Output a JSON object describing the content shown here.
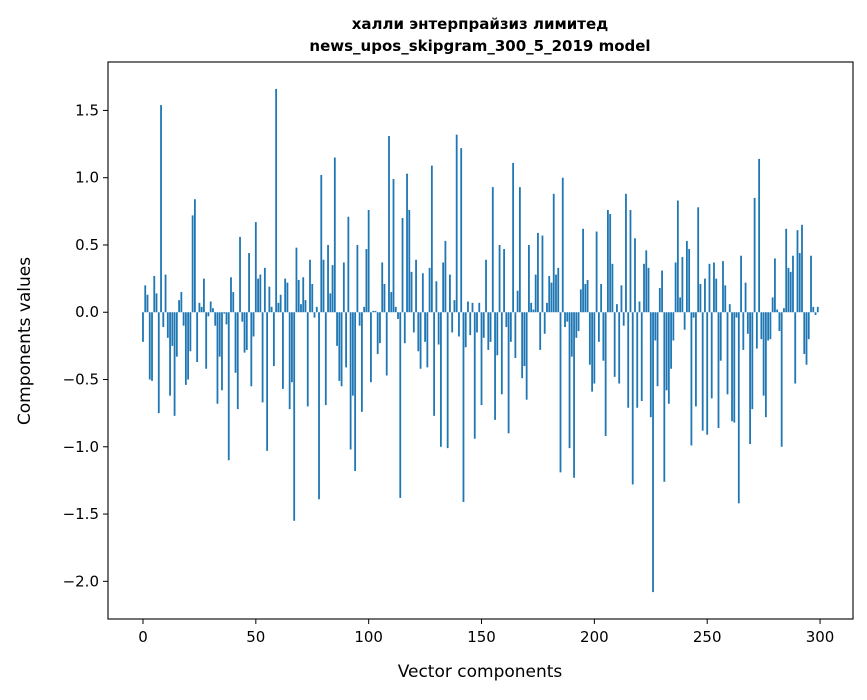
{
  "chart_data": {
    "type": "bar",
    "title": [
      "халли энтерпрайзиз лимитед",
      "news_upos_skipgram_300_5_2019 model"
    ],
    "xlabel": "Vector components",
    "ylabel": "Components values",
    "xlim": [
      -15.5,
      314.6
    ],
    "ylim": [
      -2.28,
      1.86
    ],
    "xticks": [
      0,
      50,
      100,
      150,
      200,
      250,
      300
    ],
    "xtick_labels": [
      "0",
      "50",
      "100",
      "150",
      "200",
      "250",
      "300"
    ],
    "yticks": [
      1.5,
      1.0,
      0.5,
      0.0,
      -0.5,
      -1.0,
      -1.5,
      -2.0
    ],
    "ytick_labels": [
      "1.5",
      "1.0",
      "0.5",
      "0.0",
      "−0.5",
      "−1.0",
      "−1.5",
      "−2.0"
    ],
    "grid": false,
    "bar_color": "#1f77b4",
    "values": [
      -0.22,
      0.2,
      0.13,
      -0.5,
      -0.51,
      0.27,
      0.14,
      -0.75,
      1.54,
      -0.11,
      0.28,
      -0.19,
      -0.62,
      -0.25,
      -0.77,
      -0.33,
      0.09,
      0.15,
      -0.1,
      -0.54,
      -0.5,
      -0.29,
      0.72,
      0.84,
      -0.37,
      0.07,
      0.04,
      0.25,
      -0.42,
      -0.03,
      0.08,
      0.03,
      -0.1,
      -0.68,
      -0.33,
      -0.58,
      -0.01,
      -0.09,
      -1.1,
      0.26,
      0.15,
      -0.45,
      -0.72,
      0.56,
      -0.07,
      -0.3,
      -0.28,
      0.44,
      -0.55,
      -0.18,
      0.67,
      0.25,
      0.28,
      -0.67,
      0.33,
      -1.03,
      0.19,
      0.04,
      -0.4,
      1.66,
      0.07,
      0.13,
      -0.57,
      0.25,
      0.22,
      -0.72,
      -0.52,
      -1.55,
      0.48,
      0.24,
      0.06,
      0.26,
      0.09,
      -0.7,
      0.39,
      0.21,
      -0.04,
      0.04,
      -1.39,
      1.02,
      0.39,
      -0.69,
      0.5,
      0.14,
      0.35,
      1.15,
      -0.25,
      -0.51,
      -0.55,
      0.37,
      -0.41,
      0.71,
      -1.02,
      -0.62,
      -1.18,
      0.5,
      -0.1,
      -0.74,
      0.04,
      0.47,
      0.76,
      -0.52,
      0.01,
      0.01,
      -0.31,
      -0.23,
      0.37,
      0.21,
      -0.47,
      1.31,
      0.15,
      0.99,
      0.04,
      -0.05,
      -1.38,
      0.7,
      -0.23,
      1.03,
      0.76,
      0.3,
      -0.15,
      0.39,
      -0.29,
      -0.42,
      0.29,
      -0.22,
      -0.41,
      0.33,
      1.09,
      -0.77,
      0.23,
      -0.24,
      -1.0,
      0.37,
      0.53,
      -1.01,
      0.28,
      -0.15,
      0.09,
      1.32,
      -0.18,
      1.22,
      -1.41,
      -0.26,
      0.08,
      -0.17,
      0.07,
      -0.94,
      -0.15,
      0.07,
      -0.69,
      -0.19,
      0.39,
      -0.28,
      -0.22,
      0.93,
      -0.8,
      -0.32,
      0.5,
      -0.61,
      0.47,
      -0.11,
      -0.9,
      -0.22,
      1.11,
      -0.34,
      0.16,
      0.93,
      -0.49,
      -0.4,
      -0.65,
      0.5,
      0.07,
      0.02,
      0.28,
      0.59,
      -0.28,
      0.57,
      -0.16,
      0.07,
      0.27,
      0.22,
      0.88,
      0.28,
      0.33,
      -1.19,
      1.0,
      -0.11,
      -0.07,
      -1.01,
      -0.33,
      -1.23,
      -0.19,
      -0.14,
      0.17,
      0.62,
      0.21,
      0.24,
      -0.39,
      -0.59,
      -0.53,
      0.6,
      -0.22,
      0.21,
      -0.36,
      -0.92,
      0.76,
      0.73,
      0.36,
      -0.48,
      0.06,
      -0.53,
      0.2,
      -0.1,
      0.88,
      -0.71,
      0.76,
      -1.28,
      0.55,
      -0.71,
      0.08,
      -0.66,
      0.36,
      0.46,
      0.33,
      -0.78,
      -2.08,
      -0.21,
      -0.55,
      0.18,
      0.31,
      -1.26,
      -0.58,
      -0.68,
      -0.42,
      -0.21,
      0.37,
      0.83,
      0.11,
      0.41,
      -0.13,
      0.53,
      0.47,
      -0.99,
      -0.04,
      -0.7,
      0.78,
      0.21,
      -0.88,
      0.25,
      -0.91,
      0.36,
      -0.64,
      0.37,
      0.25,
      -0.86,
      -0.36,
      0.38,
      0.2,
      -0.61,
      0.06,
      -0.81,
      -0.82,
      -0.04,
      -1.42,
      0.42,
      -0.28,
      0.22,
      -0.16,
      -0.98,
      -0.72,
      0.85,
      -0.27,
      1.14,
      -0.2,
      -0.62,
      -0.78,
      -0.21,
      -0.2,
      0.11,
      0.4,
      0.02,
      -0.14,
      -1.0,
      0.03,
      0.62,
      0.33,
      0.3,
      0.42,
      -0.53,
      0.61,
      0.44,
      0.65,
      -0.31,
      -0.39,
      -0.2,
      0.42,
      0.04,
      -0.02,
      0.04
    ]
  }
}
